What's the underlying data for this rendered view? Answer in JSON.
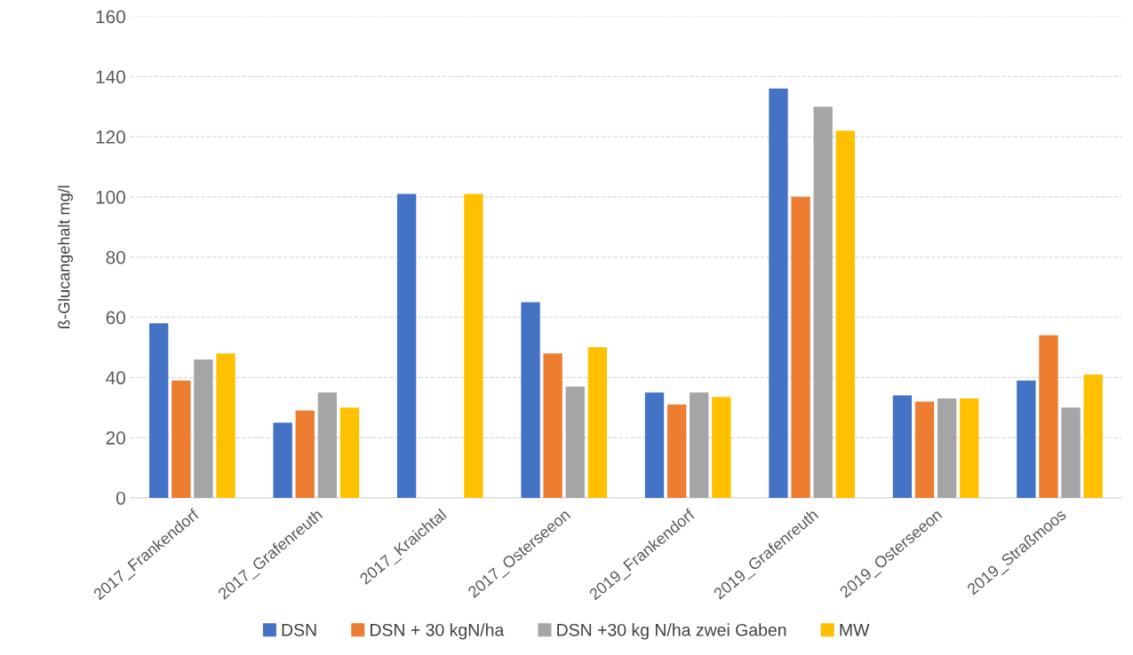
{
  "chart_data": {
    "type": "bar",
    "ylabel": "ß-Glucangehalt mg/l",
    "categories": [
      "2017_Frankendorf",
      "2017_Grafenreuth",
      "2017_Kraichtal",
      "2017_Osterseeon",
      "2019_Frankendorf",
      "2019_Grafenreuth",
      "2019_Osterseeon",
      "2019_Straßmoos"
    ],
    "series": [
      {
        "name": "DSN",
        "color": "#4472c4",
        "values": [
          58,
          25,
          101,
          65,
          35,
          136,
          34,
          39
        ]
      },
      {
        "name": "DSN + 30 kgN/ha",
        "color": "#ed7d31",
        "values": [
          39,
          29,
          null,
          48,
          31,
          100,
          32,
          54
        ]
      },
      {
        "name": "DSN +30 kg N/ha zwei Gaben",
        "color": "#a5a5a5",
        "values": [
          46,
          35,
          null,
          37,
          35,
          130,
          33,
          30
        ]
      },
      {
        "name": "MW",
        "color": "#ffc000",
        "values": [
          48,
          30,
          101,
          50,
          33.5,
          122,
          33,
          41
        ]
      }
    ],
    "ylim": [
      0,
      160
    ],
    "yticks": [
      0,
      20,
      40,
      60,
      80,
      100,
      120,
      140,
      160
    ],
    "grid": "y",
    "legend": "bottom"
  }
}
